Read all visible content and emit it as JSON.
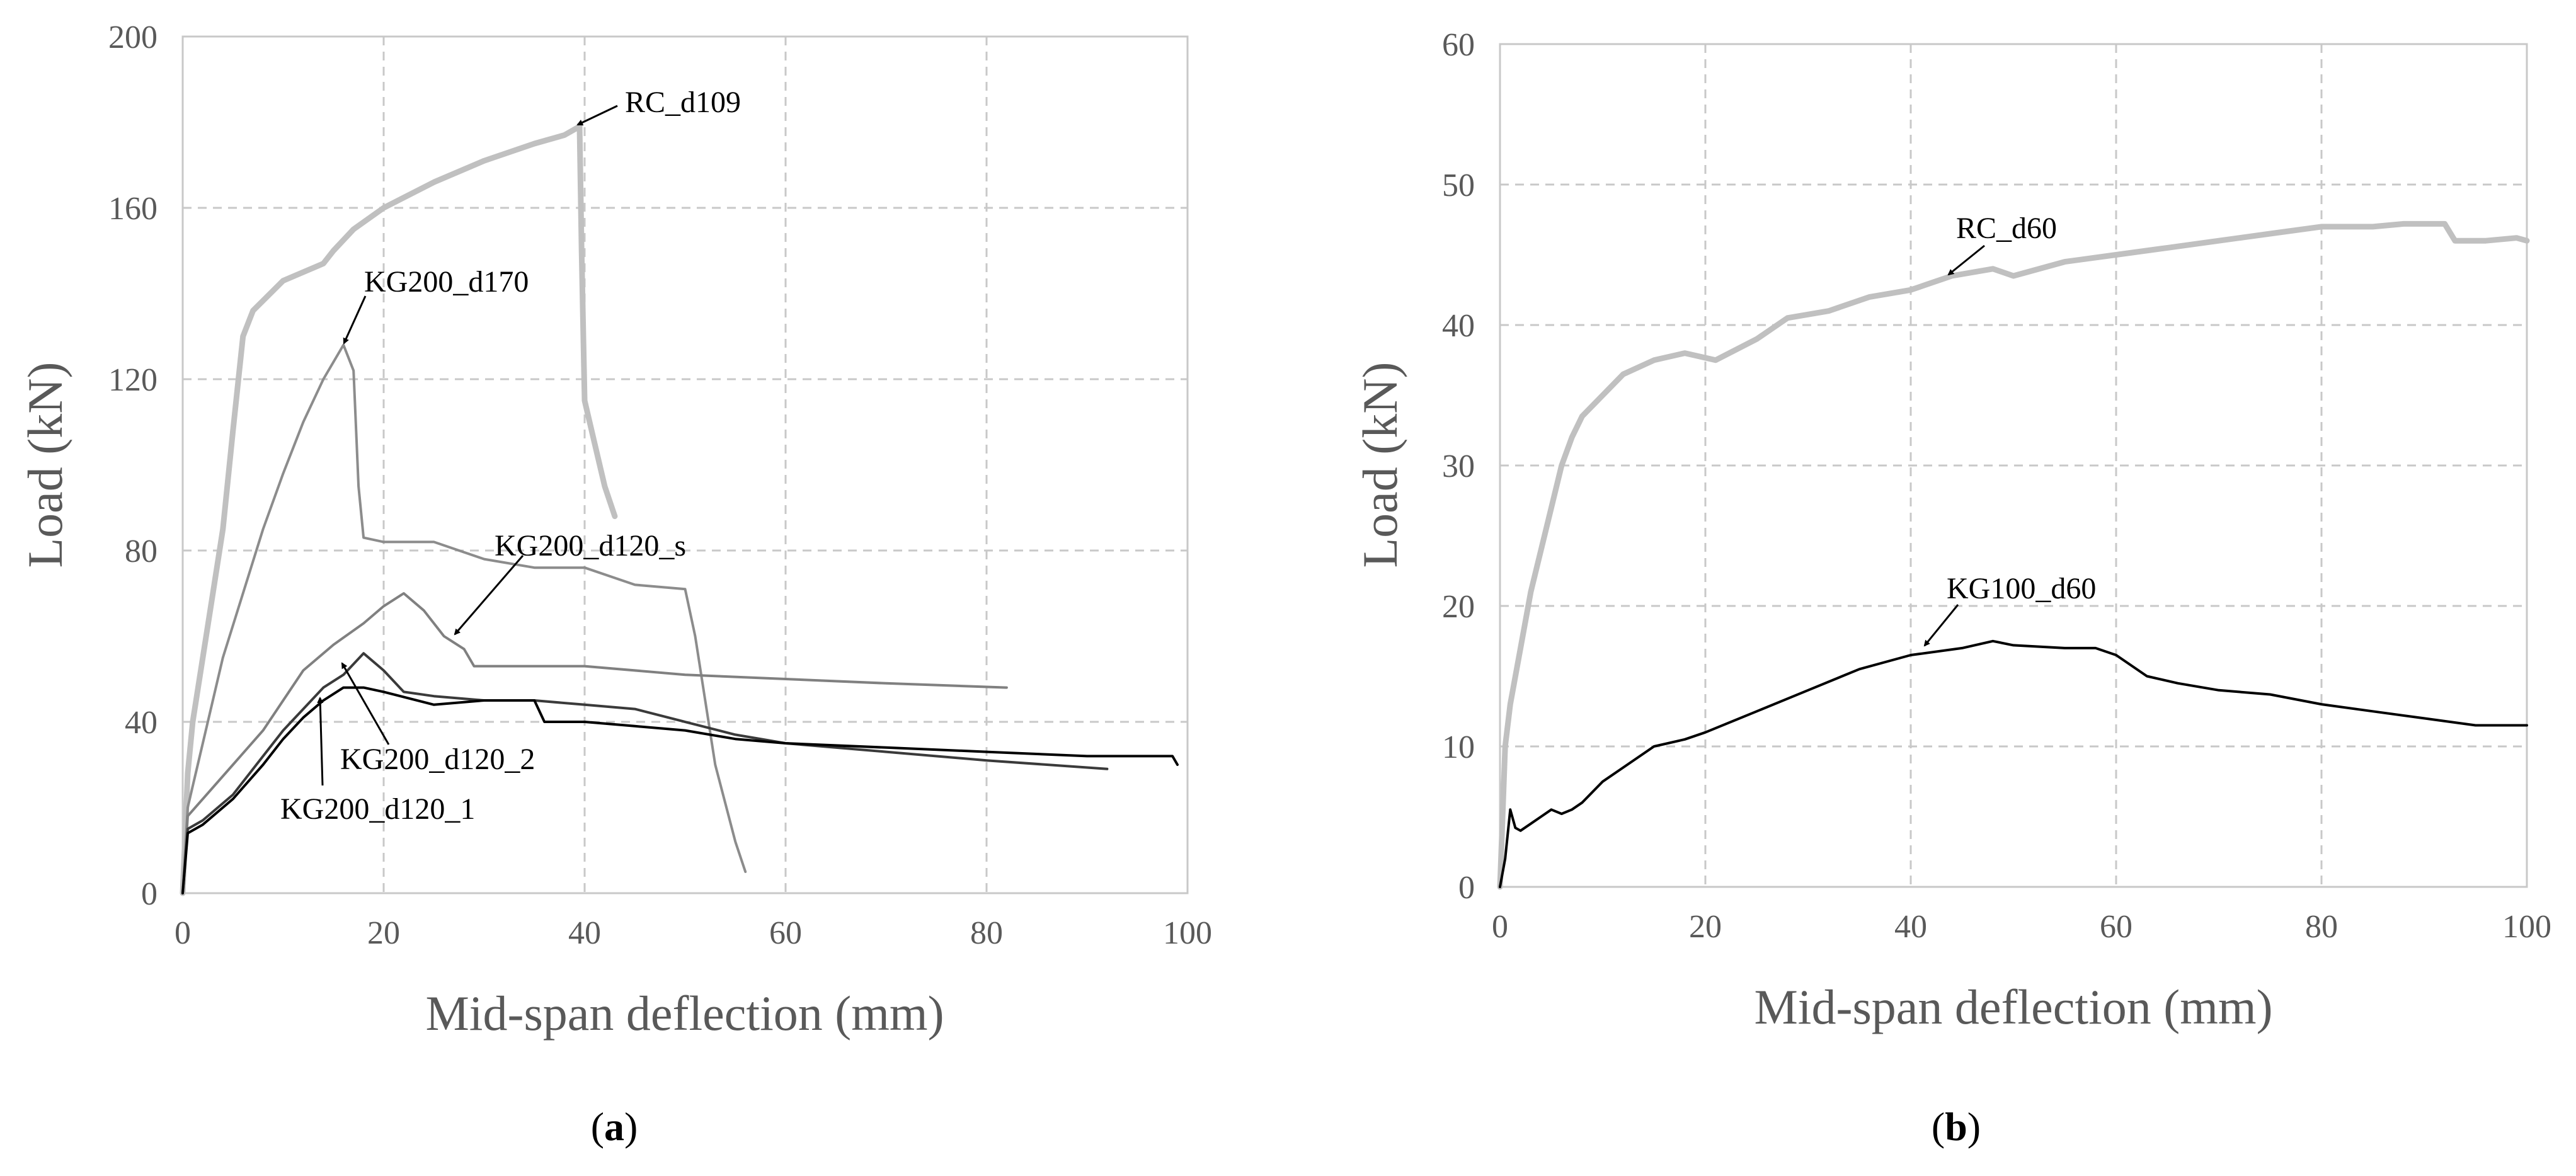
{
  "chart_data": [
    {
      "type": "line",
      "panel_label": "a",
      "title": "",
      "xlabel": "Mid-span deflection (mm)",
      "ylabel": "Load (kN)",
      "xlim": [
        0,
        100
      ],
      "ylim": [
        0,
        200
      ],
      "xticks": [
        0,
        20,
        40,
        60,
        80,
        100
      ],
      "yticks": [
        0,
        40,
        80,
        120,
        160,
        200
      ],
      "grid": true,
      "series": [
        {
          "name": "RC_d109",
          "color": "#c0c0c0",
          "points": [
            [
              0,
              0
            ],
            [
              0.5,
              28
            ],
            [
              1,
              40
            ],
            [
              2,
              55
            ],
            [
              3,
              70
            ],
            [
              4,
              85
            ],
            [
              5,
              108
            ],
            [
              6,
              130
            ],
            [
              7,
              136
            ],
            [
              10,
              143
            ],
            [
              12,
              145
            ],
            [
              14,
              147
            ],
            [
              15,
              150
            ],
            [
              17,
              155
            ],
            [
              20,
              160
            ],
            [
              25,
              166
            ],
            [
              30,
              171
            ],
            [
              35,
              175
            ],
            [
              38,
              177
            ],
            [
              39.5,
              179
            ],
            [
              39.7,
              150
            ],
            [
              40,
              115
            ],
            [
              41,
              105
            ],
            [
              42,
              95
            ],
            [
              43,
              88
            ]
          ]
        },
        {
          "name": "KG200_d170",
          "color": "#8c8c8c",
          "points": [
            [
              0,
              0
            ],
            [
              0.5,
              20
            ],
            [
              1,
              25
            ],
            [
              2,
              35
            ],
            [
              4,
              55
            ],
            [
              6,
              70
            ],
            [
              8,
              85
            ],
            [
              10,
              98
            ],
            [
              12,
              110
            ],
            [
              14,
              120
            ],
            [
              16,
              128
            ],
            [
              17,
              122
            ],
            [
              17.5,
              95
            ],
            [
              18,
              83
            ],
            [
              20,
              82
            ],
            [
              25,
              82
            ],
            [
              30,
              78
            ],
            [
              35,
              76
            ],
            [
              40,
              76
            ],
            [
              45,
              72
            ],
            [
              50,
              71
            ],
            [
              51,
              60
            ],
            [
              52,
              45
            ],
            [
              53,
              30
            ],
            [
              55,
              12
            ],
            [
              56,
              5
            ]
          ]
        },
        {
          "name": "KG200_d120_s",
          "color": "#808080",
          "points": [
            [
              0,
              0
            ],
            [
              0.5,
              18
            ],
            [
              2,
              22
            ],
            [
              5,
              30
            ],
            [
              8,
              38
            ],
            [
              10,
              45
            ],
            [
              12,
              52
            ],
            [
              15,
              58
            ],
            [
              18,
              63
            ],
            [
              20,
              67
            ],
            [
              22,
              70
            ],
            [
              24,
              66
            ],
            [
              26,
              60
            ],
            [
              28,
              57
            ],
            [
              29,
              53
            ],
            [
              35,
              53
            ],
            [
              40,
              53
            ],
            [
              50,
              51
            ],
            [
              60,
              50
            ],
            [
              70,
              49
            ],
            [
              82,
              48
            ]
          ]
        },
        {
          "name": "KG200_d120_2",
          "color": "#3a3a3a",
          "points": [
            [
              0,
              0
            ],
            [
              0.5,
              15
            ],
            [
              2,
              17
            ],
            [
              5,
              23
            ],
            [
              8,
              32
            ],
            [
              10,
              38
            ],
            [
              12,
              43
            ],
            [
              14,
              48
            ],
            [
              16,
              51
            ],
            [
              18,
              56
            ],
            [
              20,
              52
            ],
            [
              22,
              47
            ],
            [
              25,
              46
            ],
            [
              30,
              45
            ],
            [
              35,
              45
            ],
            [
              40,
              44
            ],
            [
              45,
              43
            ],
            [
              50,
              40
            ],
            [
              55,
              37
            ],
            [
              60,
              35
            ],
            [
              70,
              33
            ],
            [
              80,
              31
            ],
            [
              92,
              29
            ]
          ]
        },
        {
          "name": "KG200_d120_1",
          "color": "#000000",
          "points": [
            [
              0,
              0
            ],
            [
              0.5,
              14
            ],
            [
              2,
              16
            ],
            [
              5,
              22
            ],
            [
              8,
              30
            ],
            [
              10,
              36
            ],
            [
              12,
              41
            ],
            [
              14,
              45
            ],
            [
              16,
              48
            ],
            [
              18,
              48
            ],
            [
              20,
              47
            ],
            [
              25,
              44
            ],
            [
              30,
              45
            ],
            [
              35,
              45
            ],
            [
              36,
              40
            ],
            [
              40,
              40
            ],
            [
              45,
              39
            ],
            [
              50,
              38
            ],
            [
              55,
              36
            ],
            [
              60,
              35
            ],
            [
              70,
              34
            ],
            [
              80,
              33
            ],
            [
              90,
              32
            ],
            [
              98.5,
              32
            ],
            [
              99,
              30
            ]
          ]
        }
      ],
      "annotations": [
        {
          "text": "RC_d109",
          "points_to": [
            39.5,
            179
          ]
        },
        {
          "text": "KG200_d170",
          "points_to": [
            16,
            128
          ]
        },
        {
          "text": "KG200_d120_s",
          "points_to": [
            27,
            58
          ]
        },
        {
          "text": "KG200_d120_2",
          "points_to": [
            16,
            54
          ]
        },
        {
          "text": "KG200_d120_1",
          "points_to": [
            13.5,
            45
          ]
        }
      ]
    },
    {
      "type": "line",
      "panel_label": "b",
      "title": "",
      "xlabel": "Mid-span deflection (mm)",
      "ylabel": "Load (kN)",
      "xlim": [
        0,
        100
      ],
      "ylim": [
        0,
        60
      ],
      "xticks": [
        0,
        20,
        40,
        60,
        80,
        100
      ],
      "yticks": [
        0,
        10,
        20,
        30,
        40,
        50,
        60
      ],
      "grid": true,
      "series": [
        {
          "name": "RC_d60",
          "color": "#c0c0c0",
          "points": [
            [
              0,
              0
            ],
            [
              0.5,
              10
            ],
            [
              1,
              13
            ],
            [
              2,
              17
            ],
            [
              3,
              21
            ],
            [
              4,
              24
            ],
            [
              5,
              27
            ],
            [
              6,
              30
            ],
            [
              7,
              32
            ],
            [
              8,
              33.5
            ],
            [
              10,
              35
            ],
            [
              12,
              36.5
            ],
            [
              15,
              37.5
            ],
            [
              18,
              38
            ],
            [
              21,
              37.5
            ],
            [
              25,
              39
            ],
            [
              28,
              40.5
            ],
            [
              32,
              41
            ],
            [
              36,
              42
            ],
            [
              40,
              42.5
            ],
            [
              44,
              43.5
            ],
            [
              48,
              44
            ],
            [
              50,
              43.5
            ],
            [
              55,
              44.5
            ],
            [
              60,
              45
            ],
            [
              65,
              45.5
            ],
            [
              70,
              46
            ],
            [
              75,
              46.5
            ],
            [
              80,
              47
            ],
            [
              85,
              47
            ],
            [
              88,
              47.2
            ],
            [
              92,
              47.2
            ],
            [
              93,
              46
            ],
            [
              96,
              46
            ],
            [
              99,
              46.2
            ],
            [
              100,
              46
            ]
          ]
        },
        {
          "name": "KG100_d60",
          "color": "#000000",
          "points": [
            [
              0,
              0
            ],
            [
              0.5,
              2
            ],
            [
              1,
              5.5
            ],
            [
              1.5,
              4.2
            ],
            [
              2,
              4
            ],
            [
              3,
              4.5
            ],
            [
              4,
              5
            ],
            [
              5,
              5.5
            ],
            [
              6,
              5.2
            ],
            [
              7,
              5.5
            ],
            [
              8,
              6
            ],
            [
              10,
              7.5
            ],
            [
              12,
              8.5
            ],
            [
              15,
              10
            ],
            [
              18,
              10.5
            ],
            [
              20,
              11
            ],
            [
              25,
              12.5
            ],
            [
              30,
              14
            ],
            [
              35,
              15.5
            ],
            [
              40,
              16.5
            ],
            [
              45,
              17
            ],
            [
              48,
              17.5
            ],
            [
              50,
              17.2
            ],
            [
              55,
              17
            ],
            [
              58,
              17
            ],
            [
              60,
              16.5
            ],
            [
              63,
              15
            ],
            [
              66,
              14.5
            ],
            [
              70,
              14
            ],
            [
              75,
              13.7
            ],
            [
              80,
              13
            ],
            [
              85,
              12.5
            ],
            [
              90,
              12
            ],
            [
              95,
              11.5
            ],
            [
              100,
              11.5
            ]
          ]
        }
      ],
      "annotations": [
        {
          "text": "RC_d60",
          "points_to": [
            43.5,
            43.5
          ]
        },
        {
          "text": "KG100_d60",
          "points_to": [
            41,
            17
          ]
        }
      ]
    }
  ]
}
